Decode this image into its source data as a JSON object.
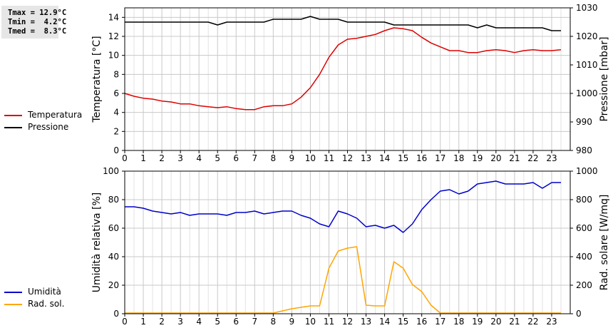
{
  "stats": {
    "tmax": "Tmax = 12.9°C",
    "tmin": "Tmin =  4.2°C",
    "tmed": "Tmed =  8.3°C"
  },
  "legend_top": [
    {
      "label": "Temperatura",
      "color": "#dd0000"
    },
    {
      "label": "Pressione",
      "color": "#000000"
    }
  ],
  "legend_bottom": [
    {
      "label": "Umidità",
      "color": "#0000cc"
    },
    {
      "label": "Rad. sol.",
      "color": "#ffa500"
    }
  ],
  "chart_data": [
    {
      "type": "line",
      "xlabel": "",
      "xlim": [
        0,
        24
      ],
      "x_ticks": [
        "0",
        "1",
        "2",
        "3",
        "4",
        "5",
        "6",
        "7",
        "8",
        "9",
        "10",
        "11",
        "12",
        "13",
        "14",
        "15",
        "16",
        "17",
        "18",
        "19",
        "20",
        "21",
        "22",
        "23"
      ],
      "y_left": {
        "label": "Temperatura [°C]",
        "lim": [
          0,
          15
        ],
        "ticks": [
          "0",
          "2",
          "4",
          "6",
          "8",
          "10",
          "12",
          "14"
        ]
      },
      "y_right": {
        "label": "Pressione [mbar]",
        "lim": [
          980,
          1030
        ],
        "ticks": [
          "980",
          "990",
          "1000",
          "1010",
          "1020",
          "1030"
        ]
      },
      "grid": true,
      "series": [
        {
          "name": "Temperatura",
          "axis": "left",
          "color": "#dd0000",
          "x": [
            0,
            0.5,
            1,
            1.5,
            2,
            2.5,
            3,
            3.5,
            4,
            4.5,
            5,
            5.5,
            6,
            6.5,
            7,
            7.5,
            8,
            8.5,
            9,
            9.5,
            10,
            10.5,
            11,
            11.5,
            12,
            12.5,
            13,
            13.5,
            14,
            14.5,
            15,
            15.5,
            16,
            16.5,
            17,
            17.5,
            18,
            18.5,
            19,
            19.5,
            20,
            20.5,
            21,
            21.5,
            22,
            22.5,
            23,
            23.5
          ],
          "y": [
            6.0,
            5.7,
            5.5,
            5.4,
            5.2,
            5.1,
            4.9,
            4.9,
            4.7,
            4.6,
            4.5,
            4.6,
            4.4,
            4.3,
            4.3,
            4.6,
            4.7,
            4.7,
            4.9,
            5.6,
            6.6,
            8.0,
            9.8,
            11.1,
            11.7,
            11.8,
            12.0,
            12.2,
            12.6,
            12.9,
            12.8,
            12.6,
            11.9,
            11.3,
            10.9,
            10.5,
            10.5,
            10.3,
            10.3,
            10.5,
            10.6,
            10.5,
            10.3,
            10.5,
            10.6,
            10.5,
            10.5,
            10.6
          ]
        },
        {
          "name": "Pressione",
          "axis": "right",
          "color": "#000000",
          "x": [
            0,
            0.5,
            1,
            1.5,
            2,
            2.5,
            3,
            3.5,
            4,
            4.5,
            5,
            5.5,
            6,
            6.5,
            7,
            7.5,
            8,
            8.5,
            9,
            9.5,
            10,
            10.5,
            11,
            11.5,
            12,
            12.5,
            13,
            13.5,
            14,
            14.5,
            15,
            15.5,
            16,
            16.5,
            17,
            17.5,
            18,
            18.5,
            19,
            19.5,
            20,
            20.5,
            21,
            21.5,
            22,
            22.5,
            23,
            23.5
          ],
          "y": [
            1025,
            1025,
            1025,
            1025,
            1025,
            1025,
            1025,
            1025,
            1025,
            1025,
            1024,
            1025,
            1025,
            1025,
            1025,
            1025,
            1026,
            1026,
            1026,
            1026,
            1027,
            1026,
            1026,
            1026,
            1025,
            1025,
            1025,
            1025,
            1025,
            1024,
            1024,
            1024,
            1024,
            1024,
            1024,
            1024,
            1024,
            1024,
            1023,
            1024,
            1023,
            1023,
            1023,
            1023,
            1023,
            1023,
            1022,
            1022
          ]
        }
      ]
    },
    {
      "type": "line",
      "xlabel": "",
      "xlim": [
        0,
        24
      ],
      "x_ticks": [
        "0",
        "1",
        "2",
        "3",
        "4",
        "5",
        "6",
        "7",
        "8",
        "9",
        "10",
        "11",
        "12",
        "13",
        "14",
        "15",
        "16",
        "17",
        "18",
        "19",
        "20",
        "21",
        "22",
        "23"
      ],
      "y_left": {
        "label": "Umidità relativa [%]",
        "lim": [
          0,
          100
        ],
        "ticks": [
          "0",
          "20",
          "40",
          "60",
          "80",
          "100"
        ]
      },
      "y_right": {
        "label": "Rad. solare [W/mq]",
        "lim": [
          0,
          1000
        ],
        "ticks": [
          "0",
          "200",
          "400",
          "600",
          "800",
          "1000"
        ]
      },
      "grid": true,
      "series": [
        {
          "name": "Umidità",
          "axis": "left",
          "color": "#0000cc",
          "x": [
            0,
            0.5,
            1,
            1.5,
            2,
            2.5,
            3,
            3.5,
            4,
            4.5,
            5,
            5.5,
            6,
            6.5,
            7,
            7.5,
            8,
            8.5,
            9,
            9.5,
            10,
            10.5,
            11,
            11.5,
            12,
            12.5,
            13,
            13.5,
            14,
            14.5,
            15,
            15.5,
            16,
            16.5,
            17,
            17.5,
            18,
            18.5,
            19,
            19.5,
            20,
            20.5,
            21,
            21.5,
            22,
            22.5,
            23,
            23.5
          ],
          "y": [
            75,
            75,
            74,
            72,
            71,
            70,
            71,
            69,
            70,
            70,
            70,
            69,
            71,
            71,
            72,
            70,
            71,
            72,
            72,
            69,
            67,
            63,
            61,
            72,
            70,
            67,
            61,
            62,
            60,
            62,
            57,
            63,
            73,
            80,
            86,
            87,
            84,
            86,
            91,
            92,
            93,
            91,
            91,
            91,
            92,
            88,
            92,
            92
          ]
        },
        {
          "name": "Rad. sol.",
          "axis": "right",
          "color": "#ffa500",
          "x": [
            0,
            0.5,
            1,
            1.5,
            2,
            2.5,
            3,
            3.5,
            4,
            4.5,
            5,
            5.5,
            6,
            6.5,
            7,
            7.5,
            8,
            8.5,
            9,
            9.5,
            10,
            10.5,
            11,
            11.5,
            12,
            12.5,
            13,
            13.5,
            14,
            14.5,
            15,
            15.5,
            16,
            16.5,
            17,
            17.5,
            18,
            18.5,
            19,
            19.5,
            20,
            20.5,
            21,
            21.5,
            22,
            22.5,
            23,
            23.5
          ],
          "y": [
            5,
            5,
            5,
            5,
            5,
            5,
            5,
            5,
            5,
            5,
            5,
            5,
            5,
            5,
            5,
            5,
            5,
            20,
            35,
            45,
            55,
            55,
            320,
            440,
            460,
            470,
            60,
            55,
            55,
            365,
            320,
            205,
            155,
            60,
            5,
            5,
            5,
            5,
            5,
            5,
            5,
            5,
            5,
            5,
            5,
            5,
            5,
            5
          ]
        }
      ]
    }
  ]
}
